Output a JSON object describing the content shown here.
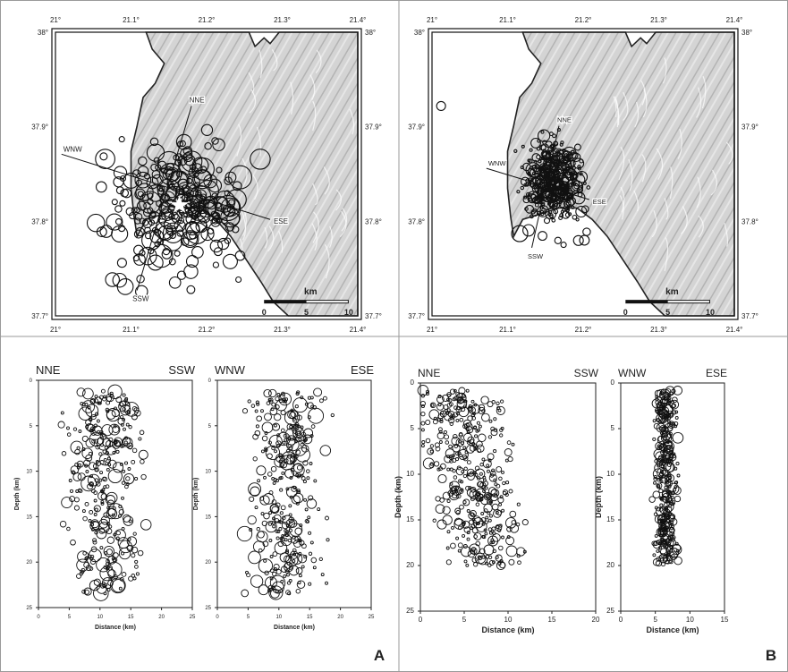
{
  "panels": {
    "A": {
      "label": "A"
    },
    "B": {
      "label": "B"
    }
  },
  "maps": [
    {
      "id": "map-A",
      "x_ticks": [
        "21°",
        "21.1°",
        "21.2°",
        "21.3°",
        "21.4°"
      ],
      "y_ticks": [
        "38°",
        "37.9°",
        "37.8°",
        "37.7°"
      ],
      "profiles": [
        "NNE",
        "SSW",
        "WNW",
        "ESE"
      ],
      "scale": {
        "title": "km",
        "labels": [
          "0",
          "5",
          "10"
        ]
      }
    },
    {
      "id": "map-B",
      "x_ticks": [
        "21°",
        "21.1°",
        "21.2°",
        "21.3°",
        "21.4°"
      ],
      "y_ticks": [
        "38°",
        "37.9°",
        "37.8°",
        "37.7°"
      ],
      "profiles": [
        "NNE",
        "SSW",
        "WNW",
        "ESE"
      ],
      "scale": {
        "title": "km",
        "labels": [
          "0",
          "5",
          "10"
        ]
      }
    }
  ],
  "chart_data": [
    {
      "type": "scatter",
      "id": "A-nne-ssw",
      "left": "NNE",
      "right": "SSW",
      "xlabel": "Distance (km)",
      "ylabel": "Depth (km)",
      "xlim": [
        0,
        25
      ],
      "ylim": [
        0,
        25
      ],
      "xticks": [
        "0",
        "5",
        "10",
        "15",
        "20",
        "25"
      ],
      "yticks": [
        "0",
        "5",
        "10",
        "15",
        "20",
        "25"
      ],
      "depth_range": [
        1.2,
        23.5
      ],
      "dist_range": [
        0.5,
        21.5
      ]
    },
    {
      "type": "scatter",
      "id": "A-wnw-ese",
      "left": "WNW",
      "right": "ESE",
      "xlabel": "Distance (km)",
      "ylabel": "Depth (km)",
      "xlim": [
        0,
        25
      ],
      "ylim": [
        0,
        25
      ],
      "xticks": [
        "0",
        "5",
        "10",
        "15",
        "20",
        "25"
      ],
      "yticks": [
        "0",
        "5",
        "10",
        "15",
        "20",
        "25"
      ],
      "depth_range": [
        1.2,
        23.5
      ],
      "dist_range": [
        0.5,
        21.5
      ]
    },
    {
      "type": "scatter",
      "id": "B-nne-ssw",
      "left": "NNE",
      "right": "SSW",
      "xlabel": "Distance (km)",
      "ylabel": "Depth (km)",
      "xlim": [
        0,
        20
      ],
      "ylim": [
        0,
        25
      ],
      "xticks": [
        "0",
        "5",
        "10",
        "15",
        "20"
      ],
      "yticks": [
        "0",
        "5",
        "10",
        "15",
        "20",
        "25"
      ],
      "depth_range": [
        0.8,
        20
      ],
      "dist_range": [
        1,
        16
      ]
    },
    {
      "type": "scatter",
      "id": "B-wnw-ese",
      "left": "WNW",
      "right": "ESE",
      "xlabel": "Distance (km)",
      "ylabel": "Depth (km)",
      "xlim": [
        0,
        15
      ],
      "ylim": [
        0,
        25
      ],
      "xticks": [
        "0",
        "5",
        "10",
        "15"
      ],
      "yticks": [
        "0",
        "5",
        "10",
        "15",
        "20",
        "25"
      ],
      "depth_range": [
        0.8,
        20
      ],
      "dist_range": [
        2,
        11
      ]
    }
  ]
}
